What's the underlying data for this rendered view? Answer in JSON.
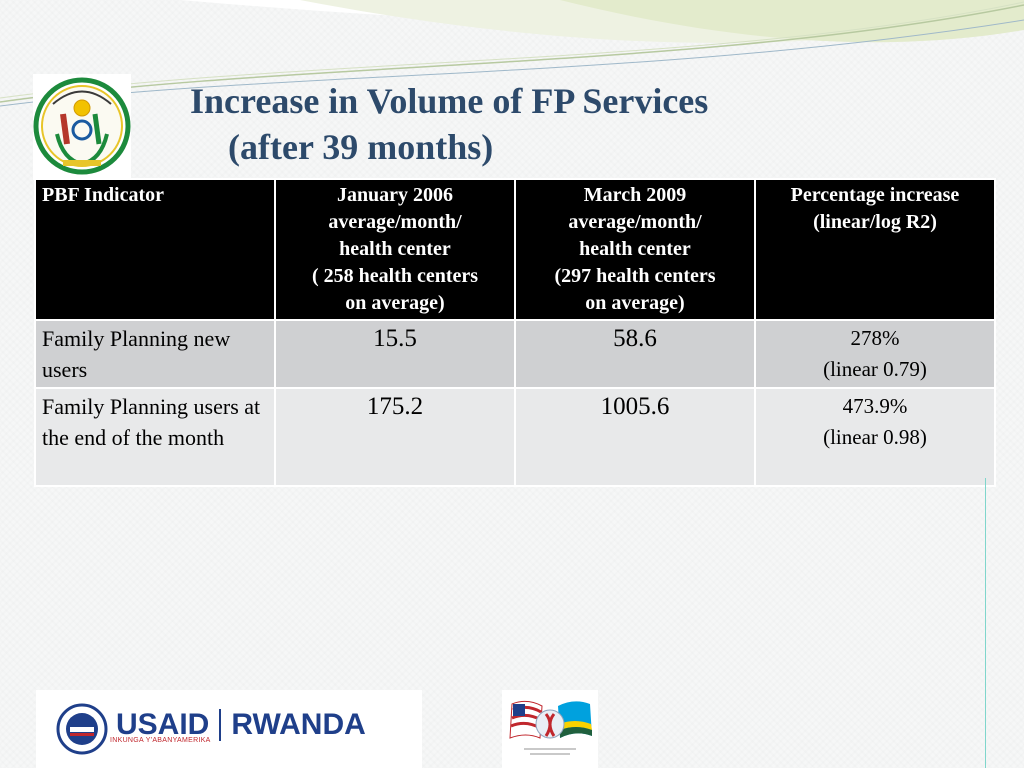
{
  "slide": {
    "title_line1": "Increase in Volume of FP Services",
    "title_line2": "(after 39 months)"
  },
  "table": {
    "headers": [
      "PBF Indicator",
      [
        "January 2006",
        "average/month/",
        "health center",
        "( 258 health centers",
        "on average)"
      ],
      [
        "March 2009",
        "average/month/",
        "health center",
        "(297 health centers",
        "on average)"
      ],
      [
        "Percentage increase",
        "(linear/log R2)"
      ]
    ],
    "rows": [
      {
        "label": "Family Planning new users",
        "jan2006": "15.5",
        "mar2009": "58.6",
        "pct": "278%",
        "fit": "(linear 0.79)"
      },
      {
        "label": "Family Planning users at the end of the month",
        "jan2006": "175.2",
        "mar2009": "1005.6",
        "pct": "473.9%",
        "fit": "(linear 0.98)"
      }
    ]
  },
  "logos": {
    "usaid_word": "USAID",
    "rwanda_word": "RWANDA",
    "usaid_tagline": "INKUNGA Y'ABANYAMERIKA",
    "colors": {
      "usaid_blue": "#1f3f8a",
      "usaid_red": "#c0272d"
    }
  },
  "theme": {
    "title_color": "#2d4a6b",
    "header_bg": "#000000",
    "row_a_bg": "#cfd0d2",
    "row_b_bg": "#e8e9ea"
  }
}
